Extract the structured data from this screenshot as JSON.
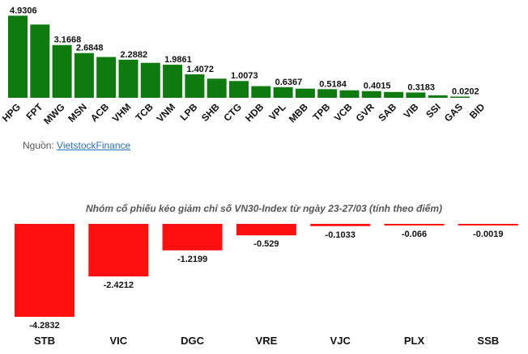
{
  "source": {
    "prefix": "Nguồn: ",
    "link_text": "VietstockFinance"
  },
  "chart_data": [
    {
      "type": "bar",
      "title": "",
      "categories": [
        "HPG",
        "FPT",
        "MWG",
        "MSN",
        "ACB",
        "VHM",
        "TCB",
        "VNM",
        "LPB",
        "SHB",
        "CTG",
        "HDB",
        "VPL",
        "MBB",
        "TPB",
        "VCB",
        "GVR",
        "SAB",
        "VIB",
        "SSI",
        "GAS",
        "BID"
      ],
      "values": [
        4.9306,
        4.4,
        3.1668,
        2.6848,
        2.45,
        2.2882,
        2.1,
        1.9861,
        1.4072,
        1.15,
        1.0073,
        0.7,
        0.6367,
        0.55,
        0.5184,
        0.45,
        0.4015,
        0.35,
        0.3183,
        0.15,
        0.0202,
        0
      ],
      "data_labels": [
        "4.9306",
        "",
        "3.1668",
        "2.6848",
        "",
        "2.2882",
        "",
        "1.9861",
        "1.4072",
        "",
        "1.0073",
        "",
        "0.6367",
        "",
        "0.5184",
        "",
        "0.4015",
        "",
        "0.3183",
        "",
        "0.0202",
        ""
      ],
      "ylim": [
        0,
        4.95
      ],
      "color": "#0f7a0f",
      "grid": false
    },
    {
      "type": "bar",
      "title": "Nhóm cổ phiếu kéo giảm chỉ số VN30-Index từ ngày 23-27/03 (tính theo điểm)",
      "categories": [
        "STB",
        "VIC",
        "DGC",
        "VRE",
        "VJC",
        "PLX",
        "SSB"
      ],
      "values": [
        -4.2832,
        -2.4212,
        -1.2199,
        -0.529,
        -0.1033,
        -0.066,
        -0.0019
      ],
      "data_labels": [
        "-4.2832",
        "-2.4212",
        "-1.2199",
        "-0.529",
        "-0.1033",
        "-0.066",
        "-0.0019"
      ],
      "ylim": [
        -4.2832,
        0
      ],
      "color": "#ff1010",
      "grid": false
    }
  ]
}
